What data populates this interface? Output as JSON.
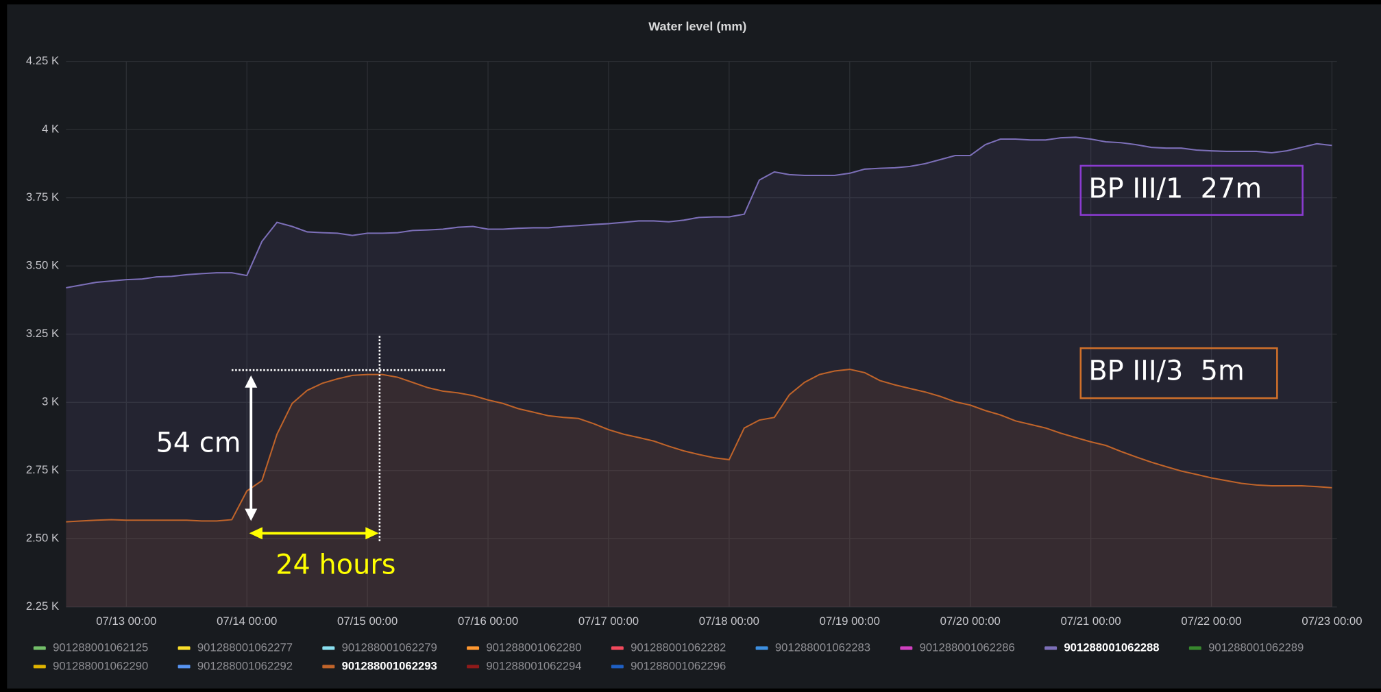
{
  "chart_data": {
    "type": "line",
    "title": "Water level (mm)",
    "x": [
      "07/12 12:00",
      "07/12 15:00",
      "07/12 18:00",
      "07/12 21:00",
      "07/13 00:00",
      "07/13 03:00",
      "07/13 06:00",
      "07/13 09:00",
      "07/13 12:00",
      "07/13 15:00",
      "07/13 18:00",
      "07/13 21:00",
      "07/14 00:00",
      "07/14 03:00",
      "07/14 06:00",
      "07/14 09:00",
      "07/14 12:00",
      "07/14 15:00",
      "07/14 18:00",
      "07/14 21:00",
      "07/15 00:00",
      "07/15 03:00",
      "07/15 06:00",
      "07/15 09:00",
      "07/15 12:00",
      "07/15 15:00",
      "07/15 18:00",
      "07/15 21:00",
      "07/16 00:00",
      "07/16 03:00",
      "07/16 06:00",
      "07/16 09:00",
      "07/16 12:00",
      "07/16 15:00",
      "07/16 18:00",
      "07/16 21:00",
      "07/17 00:00",
      "07/17 03:00",
      "07/17 06:00",
      "07/17 09:00",
      "07/17 12:00",
      "07/17 15:00",
      "07/17 18:00",
      "07/17 21:00",
      "07/18 00:00",
      "07/18 03:00",
      "07/18 06:00",
      "07/18 09:00",
      "07/18 12:00",
      "07/18 15:00",
      "07/18 18:00",
      "07/18 21:00",
      "07/19 00:00",
      "07/19 03:00",
      "07/19 06:00",
      "07/19 09:00",
      "07/19 12:00",
      "07/19 15:00",
      "07/19 18:00",
      "07/19 21:00",
      "07/20 00:00",
      "07/20 03:00",
      "07/20 06:00",
      "07/20 09:00",
      "07/20 12:00",
      "07/20 15:00",
      "07/20 18:00",
      "07/20 21:00",
      "07/21 00:00",
      "07/21 03:00",
      "07/21 06:00",
      "07/21 09:00",
      "07/21 12:00",
      "07/21 15:00",
      "07/21 18:00",
      "07/21 21:00",
      "07/22 00:00",
      "07/22 03:00",
      "07/22 06:00",
      "07/22 09:00",
      "07/22 12:00",
      "07/22 15:00",
      "07/22 18:00",
      "07/22 21:00",
      "07/23 00:00"
    ],
    "xlim": [
      "07/12 12:00",
      "07/23 01:00"
    ],
    "xticks": [
      "07/13 00:00",
      "07/14 00:00",
      "07/15 00:00",
      "07/16 00:00",
      "07/17 00:00",
      "07/18 00:00",
      "07/19 00:00",
      "07/20 00:00",
      "07/21 00:00",
      "07/22 00:00",
      "07/23 00:00"
    ],
    "ylim": [
      2250,
      4250
    ],
    "yticks": [
      {
        "value": 2250,
        "label": "2.25 K"
      },
      {
        "value": 2500,
        "label": "2.50 K"
      },
      {
        "value": 2750,
        "label": "2.75 K"
      },
      {
        "value": 3000,
        "label": "3 K"
      },
      {
        "value": 3250,
        "label": "3.25 K"
      },
      {
        "value": 3500,
        "label": "3.50 K"
      },
      {
        "value": 3750,
        "label": "3.75 K"
      },
      {
        "value": 4000,
        "label": "4 K"
      },
      {
        "value": 4250,
        "label": "4.25 K"
      }
    ],
    "grid": true,
    "series": [
      {
        "name": "901288001062125",
        "color": "#73bf69"
      },
      {
        "name": "901288001062277",
        "color": "#fade2a"
      },
      {
        "name": "901288001062279",
        "color": "#8ae0f0"
      },
      {
        "name": "901288001062280",
        "color": "#ff9830"
      },
      {
        "name": "901288001062282",
        "color": "#f2495c"
      },
      {
        "name": "901288001062283",
        "color": "#3d8fe0"
      },
      {
        "name": "901288001062286",
        "color": "#d040c0"
      },
      {
        "name": "901288001062288",
        "color": "#7c6fb8",
        "values": [
          3420,
          3430,
          3440,
          3445,
          3450,
          3452,
          3460,
          3462,
          3468,
          3472,
          3475,
          3475,
          3465,
          3590,
          3660,
          3645,
          3625,
          3622,
          3620,
          3612,
          3620,
          3620,
          3622,
          3630,
          3632,
          3635,
          3642,
          3645,
          3635,
          3635,
          3638,
          3640,
          3640,
          3645,
          3648,
          3652,
          3655,
          3660,
          3665,
          3665,
          3662,
          3668,
          3678,
          3680,
          3680,
          3690,
          3815,
          3845,
          3835,
          3832,
          3832,
          3832,
          3840,
          3855,
          3858,
          3860,
          3865,
          3875,
          3890,
          3905,
          3905,
          3945,
          3965,
          3965,
          3962,
          3962,
          3970,
          3972,
          3965,
          3955,
          3952,
          3945,
          3935,
          3932,
          3932,
          3925,
          3922,
          3920,
          3920,
          3920,
          3915,
          3922,
          3935,
          3948,
          3942
        ]
      },
      {
        "name": "901288001062289",
        "color": "#37872d"
      },
      {
        "name": "901288001062290",
        "color": "#e0b400"
      },
      {
        "name": "901288001062292",
        "color": "#5794f2"
      },
      {
        "name": "901288001062293",
        "color": "#c0642a",
        "values": [
          2562,
          2565,
          2568,
          2570,
          2568,
          2568,
          2568,
          2568,
          2568,
          2565,
          2565,
          2570,
          2675,
          2713,
          2883,
          2996,
          3044,
          3070,
          3086,
          3099,
          3102,
          3102,
          3092,
          3073,
          3054,
          3041,
          3035,
          3025,
          3009,
          2996,
          2977,
          2964,
          2951,
          2945,
          2941,
          2922,
          2900,
          2883,
          2871,
          2858,
          2839,
          2822,
          2809,
          2797,
          2790,
          2906,
          2935,
          2945,
          3028,
          3073,
          3102,
          3115,
          3121,
          3109,
          3080,
          3064,
          3051,
          3038,
          3022,
          3002,
          2990,
          2970,
          2954,
          2932,
          2919,
          2906,
          2887,
          2871,
          2855,
          2842,
          2820,
          2800,
          2781,
          2764,
          2748,
          2736,
          2723,
          2713,
          2703,
          2697,
          2694,
          2694,
          2694,
          2691,
          2687
        ]
      },
      {
        "name": "901288001062294",
        "color": "#8f1a1a"
      },
      {
        "name": "901288001062296",
        "color": "#1f60c4"
      }
    ],
    "annotations": [
      "54 cm",
      "24 hours",
      "BP III/1  27m",
      "BP III/3  5m"
    ]
  }
}
